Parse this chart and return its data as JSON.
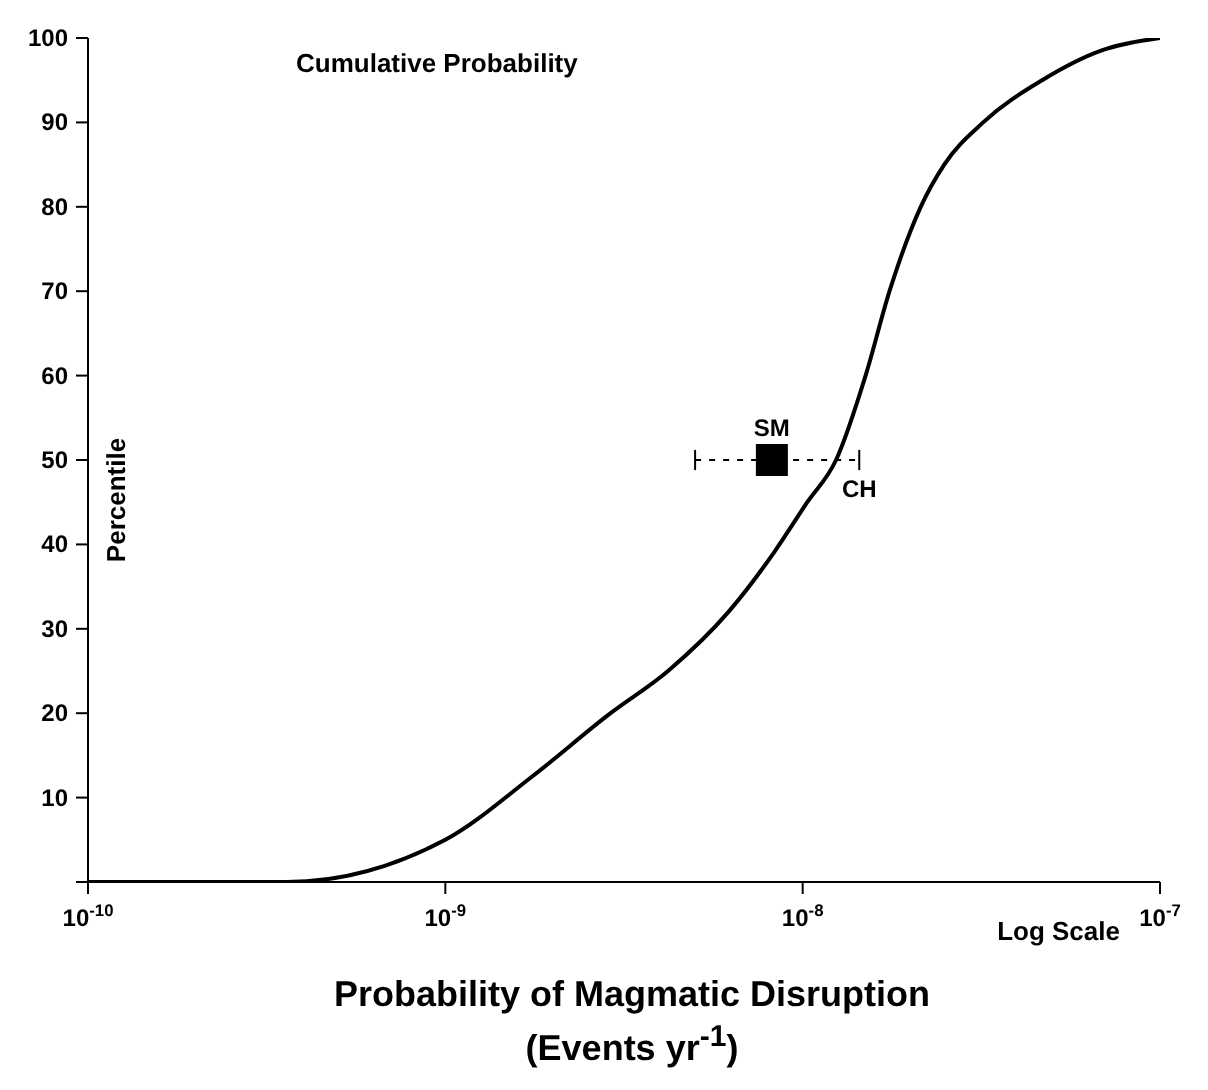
{
  "chart_data": {
    "type": "line",
    "title": "Cumulative Probability",
    "xlabel": "Probability of Magmatic Disruption\n(Events yr$^{-1}$)",
    "ylabel": "Percentile",
    "log": "x",
    "xlim": [
      1e-10,
      1e-07
    ],
    "xticks": [
      {
        "value": 1e-10,
        "label": "10$^{-10}$"
      },
      {
        "value": 1e-09,
        "label": "10$^{-9}$"
      },
      {
        "value": 1e-08,
        "label": "10$^{-8}$"
      },
      {
        "value": 1e-07,
        "label": "10$^{-7}$"
      }
    ],
    "ylim": [
      0,
      100
    ],
    "yticks": [
      {
        "value": 0,
        "label": null
      },
      10,
      20,
      30,
      40,
      50,
      60,
      70,
      80,
      90,
      100
    ],
    "series": [
      {
        "color": "#000000",
        "marker": "none",
        "line_style": "solid",
        "x": [
          1e-10,
          2e-10,
          3.6e-10,
          1e-09,
          1.75e-09,
          2.9e-09,
          4.2e-09,
          6.2e-09,
          8.3e-09,
          1.03e-08,
          1.24e-08,
          1.5e-08,
          1.75e-08,
          2.14e-08,
          2.49e-08,
          3.2e-08,
          4.68e-08,
          6.84e-08,
          1e-07
        ],
        "values": [
          0,
          0,
          0,
          5,
          12.5,
          20,
          25,
          32,
          39,
          45,
          50,
          60,
          70,
          80,
          85,
          90,
          95,
          98.5,
          100
        ]
      },
      {
        "type": "scatter",
        "name": "SM",
        "color": "#000000",
        "marker": "square",
        "x": [
          8.2e-09
        ],
        "values": [
          50
        ],
        "xerrors": [
          [
            5e-09,
            1.44e-08
          ]
        ]
      }
    ],
    "annotations": [
      {
        "text": "CH",
        "x": 1.44e-08,
        "y": 50
      },
      "Log Scale"
    ]
  }
}
